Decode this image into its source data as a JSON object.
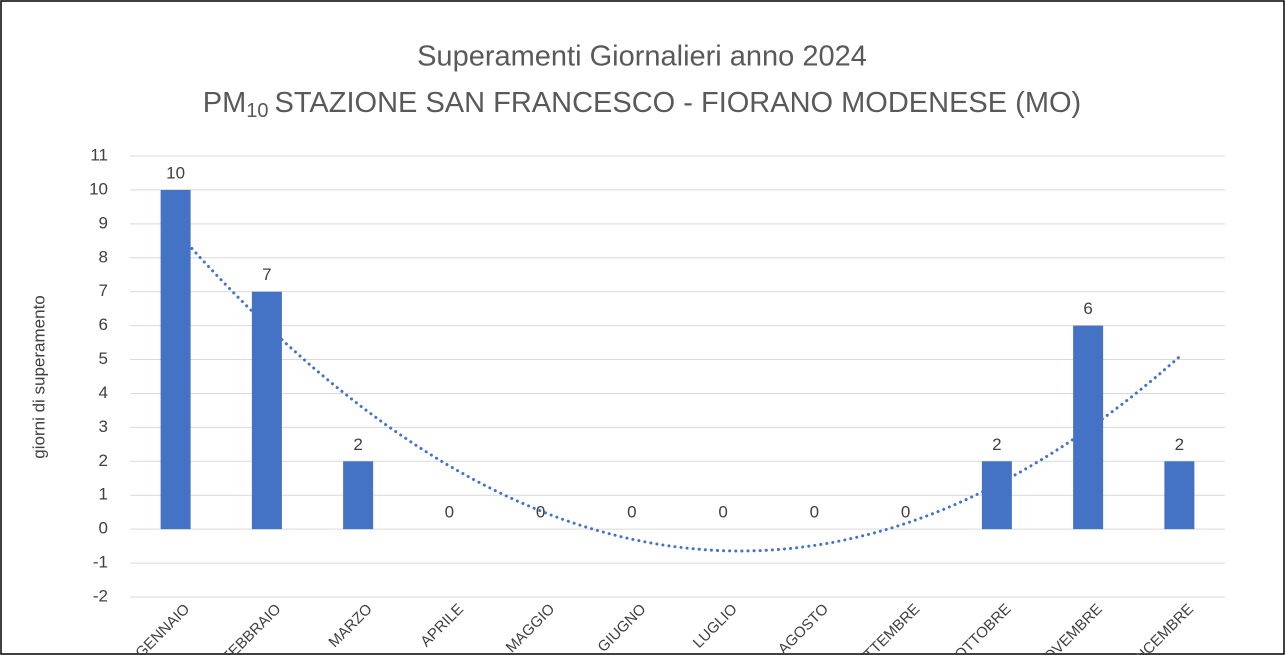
{
  "chart_data": {
    "type": "bar",
    "title": "Superamenti Giornalieri anno 2024",
    "subtitle": {
      "main": "PM",
      "sub": "10",
      "rest": "STAZIONE SAN FRANCESCO - FIORANO MODENESE (MO)"
    },
    "y_label": "giorni di superamento",
    "categories": [
      "GENNAIO",
      "FEBBRAIO",
      "MARZO",
      "APRILE",
      "MAGGIO",
      "GIUGNO",
      "LUGLIO",
      "AGOSTO",
      "SETTEMBRE",
      "OTTOBRE",
      "NOVEMBRE",
      "DICEMBRE"
    ],
    "values": [
      10,
      7,
      2,
      0,
      0,
      0,
      0,
      0,
      0,
      2,
      6,
      2
    ],
    "color": "#4472c4",
    "ylim": [
      -2,
      11
    ],
    "yticks": [
      -2,
      -1,
      0,
      1,
      2,
      3,
      4,
      5,
      6,
      7,
      8,
      9,
      10,
      11
    ],
    "grid": true,
    "data_labels": true,
    "trendline": {
      "type": "polynomial",
      "order": 2,
      "color": "#4472c4"
    }
  }
}
